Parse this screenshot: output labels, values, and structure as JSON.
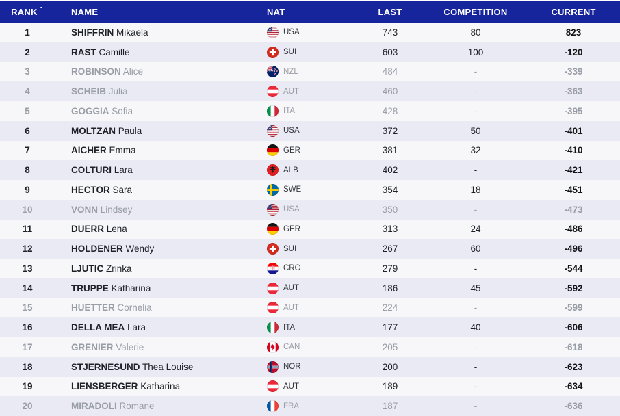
{
  "table": {
    "sort_indicator": "▼",
    "columns": [
      {
        "key": "rank",
        "label": "RANK"
      },
      {
        "key": "name",
        "label": "NAME"
      },
      {
        "key": "nat",
        "label": "NAT"
      },
      {
        "key": "last",
        "label": "LAST"
      },
      {
        "key": "competition",
        "label": "COMPETITION"
      },
      {
        "key": "current",
        "label": "CURRENT"
      }
    ],
    "rows": [
      {
        "rank": "1",
        "surname": "SHIFFRIN",
        "given": "Mikaela",
        "nat": "USA",
        "last": "743",
        "competition": "80",
        "current": "823",
        "dimmed": false
      },
      {
        "rank": "2",
        "surname": "RAST",
        "given": "Camille",
        "nat": "SUI",
        "last": "603",
        "competition": "100",
        "current": "-120",
        "dimmed": false
      },
      {
        "rank": "3",
        "surname": "ROBINSON",
        "given": "Alice",
        "nat": "NZL",
        "last": "484",
        "competition": "-",
        "current": "-339",
        "dimmed": true
      },
      {
        "rank": "4",
        "surname": "SCHEIB",
        "given": "Julia",
        "nat": "AUT",
        "last": "460",
        "competition": "-",
        "current": "-363",
        "dimmed": true
      },
      {
        "rank": "5",
        "surname": "GOGGIA",
        "given": "Sofia",
        "nat": "ITA",
        "last": "428",
        "competition": "-",
        "current": "-395",
        "dimmed": true
      },
      {
        "rank": "6",
        "surname": "MOLTZAN",
        "given": "Paula",
        "nat": "USA",
        "last": "372",
        "competition": "50",
        "current": "-401",
        "dimmed": false
      },
      {
        "rank": "7",
        "surname": "AICHER",
        "given": "Emma",
        "nat": "GER",
        "last": "381",
        "competition": "32",
        "current": "-410",
        "dimmed": false
      },
      {
        "rank": "8",
        "surname": "COLTURI",
        "given": "Lara",
        "nat": "ALB",
        "last": "402",
        "competition": "-",
        "current": "-421",
        "dimmed": false
      },
      {
        "rank": "9",
        "surname": "HECTOR",
        "given": "Sara",
        "nat": "SWE",
        "last": "354",
        "competition": "18",
        "current": "-451",
        "dimmed": false
      },
      {
        "rank": "10",
        "surname": "VONN",
        "given": "Lindsey",
        "nat": "USA",
        "last": "350",
        "competition": "-",
        "current": "-473",
        "dimmed": true
      },
      {
        "rank": "11",
        "surname": "DUERR",
        "given": "Lena",
        "nat": "GER",
        "last": "313",
        "competition": "24",
        "current": "-486",
        "dimmed": false
      },
      {
        "rank": "12",
        "surname": "HOLDENER",
        "given": "Wendy",
        "nat": "SUI",
        "last": "267",
        "competition": "60",
        "current": "-496",
        "dimmed": false
      },
      {
        "rank": "13",
        "surname": "LJUTIC",
        "given": "Zrinka",
        "nat": "CRO",
        "last": "279",
        "competition": "-",
        "current": "-544",
        "dimmed": false
      },
      {
        "rank": "14",
        "surname": "TRUPPE",
        "given": "Katharina",
        "nat": "AUT",
        "last": "186",
        "competition": "45",
        "current": "-592",
        "dimmed": false
      },
      {
        "rank": "15",
        "surname": "HUETTER",
        "given": "Cornelia",
        "nat": "AUT",
        "last": "224",
        "competition": "-",
        "current": "-599",
        "dimmed": true
      },
      {
        "rank": "16",
        "surname": "DELLA MEA",
        "given": "Lara",
        "nat": "ITA",
        "last": "177",
        "competition": "40",
        "current": "-606",
        "dimmed": false
      },
      {
        "rank": "17",
        "surname": "GRENIER",
        "given": "Valerie",
        "nat": "CAN",
        "last": "205",
        "competition": "-",
        "current": "-618",
        "dimmed": true
      },
      {
        "rank": "18",
        "surname": "STJERNESUND",
        "given": "Thea Louise",
        "nat": "NOR",
        "last": "200",
        "competition": "-",
        "current": "-623",
        "dimmed": false
      },
      {
        "rank": "19",
        "surname": "LIENSBERGER",
        "given": "Katharina",
        "nat": "AUT",
        "last": "189",
        "competition": "-",
        "current": "-634",
        "dimmed": false
      },
      {
        "rank": "20",
        "surname": "MIRADOLI",
        "given": "Romane",
        "nat": "FRA",
        "last": "187",
        "competition": "-",
        "current": "-636",
        "dimmed": true
      }
    ]
  },
  "colors": {
    "header_bg": "#16259c",
    "header_text": "#ffffff",
    "row_light": "#f7f7f9",
    "row_alt": "#e9eaf4",
    "text": "#1e2127",
    "text_strong": "#121418",
    "text_nat": "#33373d",
    "text_muted": "#999da6"
  }
}
